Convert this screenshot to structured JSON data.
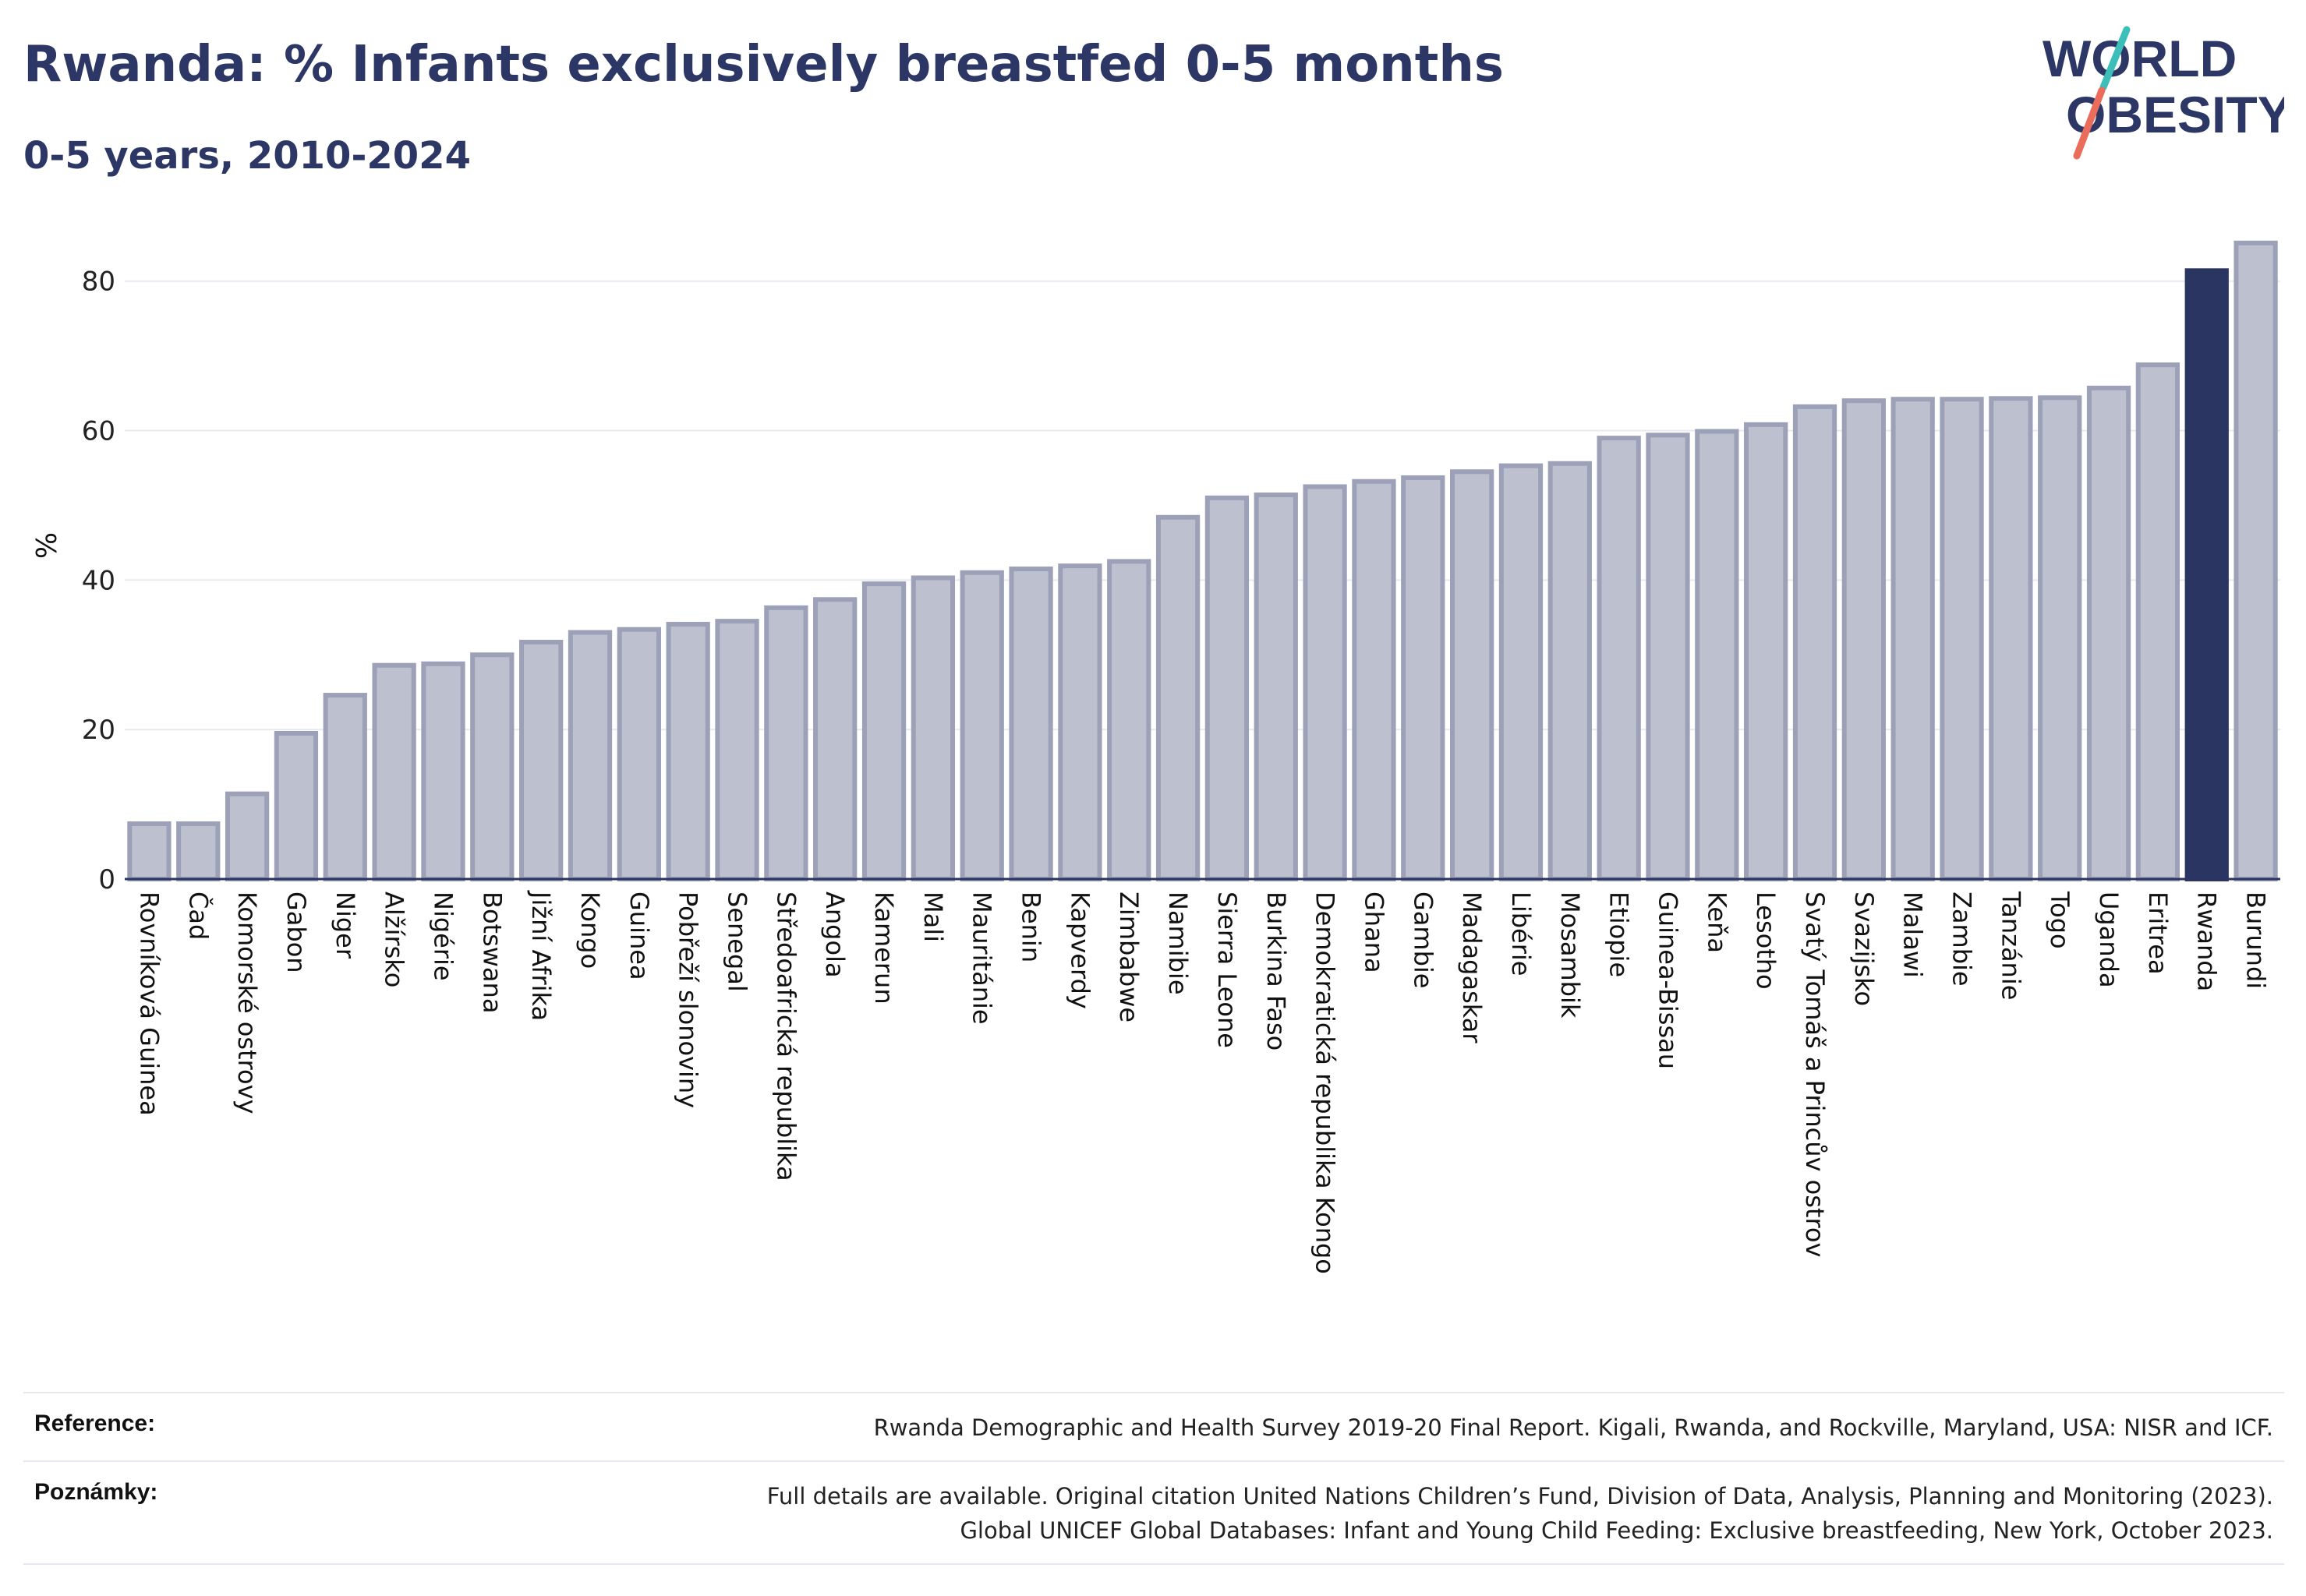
{
  "header": {
    "title": "Rwanda: % Infants exclusively breastfed 0-5 months",
    "subtitle": "0-5 years, 2010-2024"
  },
  "logo": {
    "line1": "WORLD",
    "line2": "OBESITY",
    "colors": {
      "text": "#2d3766",
      "slash_teal": "#3bbfb8",
      "slash_coral": "#ea6c5a"
    }
  },
  "colors": {
    "bar": "#bcc0cf",
    "bar_stroke": "#9ca1b8",
    "highlight": "#2b3561",
    "grid": "#e8eaf0",
    "axis": "#2b3561"
  },
  "chart_data": {
    "type": "bar",
    "ylabel": "%",
    "ylim": [
      0,
      88
    ],
    "yticks": [
      "0",
      "20",
      "40",
      "60",
      "80"
    ],
    "grid": true,
    "highlight_category": "Rwanda",
    "categories": [
      "Rovníková Guinea",
      "Čad",
      "Komorské ostrovy",
      "Gabon",
      "Niger",
      "Alžírsko",
      "Nigérie",
      "Botswana",
      "Jižní Afrika",
      "Kongo",
      "Guinea",
      "Pobřeží slonoviny",
      "Senegal",
      "Středoafrická republika",
      "Angola",
      "Kamerun",
      "Mali",
      "Mauritánie",
      "Benin",
      "Kapverdy",
      "Zimbabwe",
      "Namibie",
      "Sierra Leone",
      "Burkina Faso",
      "Demokratická republika Kongo",
      "Ghana",
      "Gambie",
      "Madagaskar",
      "Libérie",
      "Mosambik",
      "Etiopie",
      "Guinea-Bissau",
      "Keňa",
      "Lesotho",
      "Svatý Tomáš a Princův ostrov",
      "Svazijsko",
      "Malawi",
      "Zambie",
      "Tanzánie",
      "Togo",
      "Uganda",
      "Eritrea",
      "Rwanda",
      "Burundi"
    ],
    "values": [
      7.4,
      7.4,
      11.4,
      19.5,
      24.6,
      28.6,
      28.8,
      30.0,
      31.7,
      33.0,
      33.4,
      34.1,
      34.5,
      36.3,
      37.4,
      39.5,
      40.3,
      41.0,
      41.5,
      41.9,
      42.5,
      48.4,
      51.0,
      51.4,
      52.5,
      53.2,
      53.7,
      54.5,
      55.3,
      55.6,
      59.0,
      59.4,
      59.9,
      60.8,
      63.2,
      64.0,
      64.2,
      64.2,
      64.3,
      64.4,
      65.7,
      68.8,
      81.4,
      85.1
    ]
  },
  "footer": {
    "reference_label": "Reference:",
    "reference_text": "Rwanda Demographic and Health Survey 2019-20 Final Report. Kigali, Rwanda, and Rockville, Maryland, USA: NISR and ICF.",
    "notes_label": "Poznámky:",
    "notes_line1": "Full details are available. Original citation United Nations Children’s Fund, Division of Data, Analysis, Planning and Monitoring (2023).",
    "notes_line2": "Global UNICEF Global Databases: Infant and Young Child Feeding: Exclusive breastfeeding, New York, October 2023."
  }
}
